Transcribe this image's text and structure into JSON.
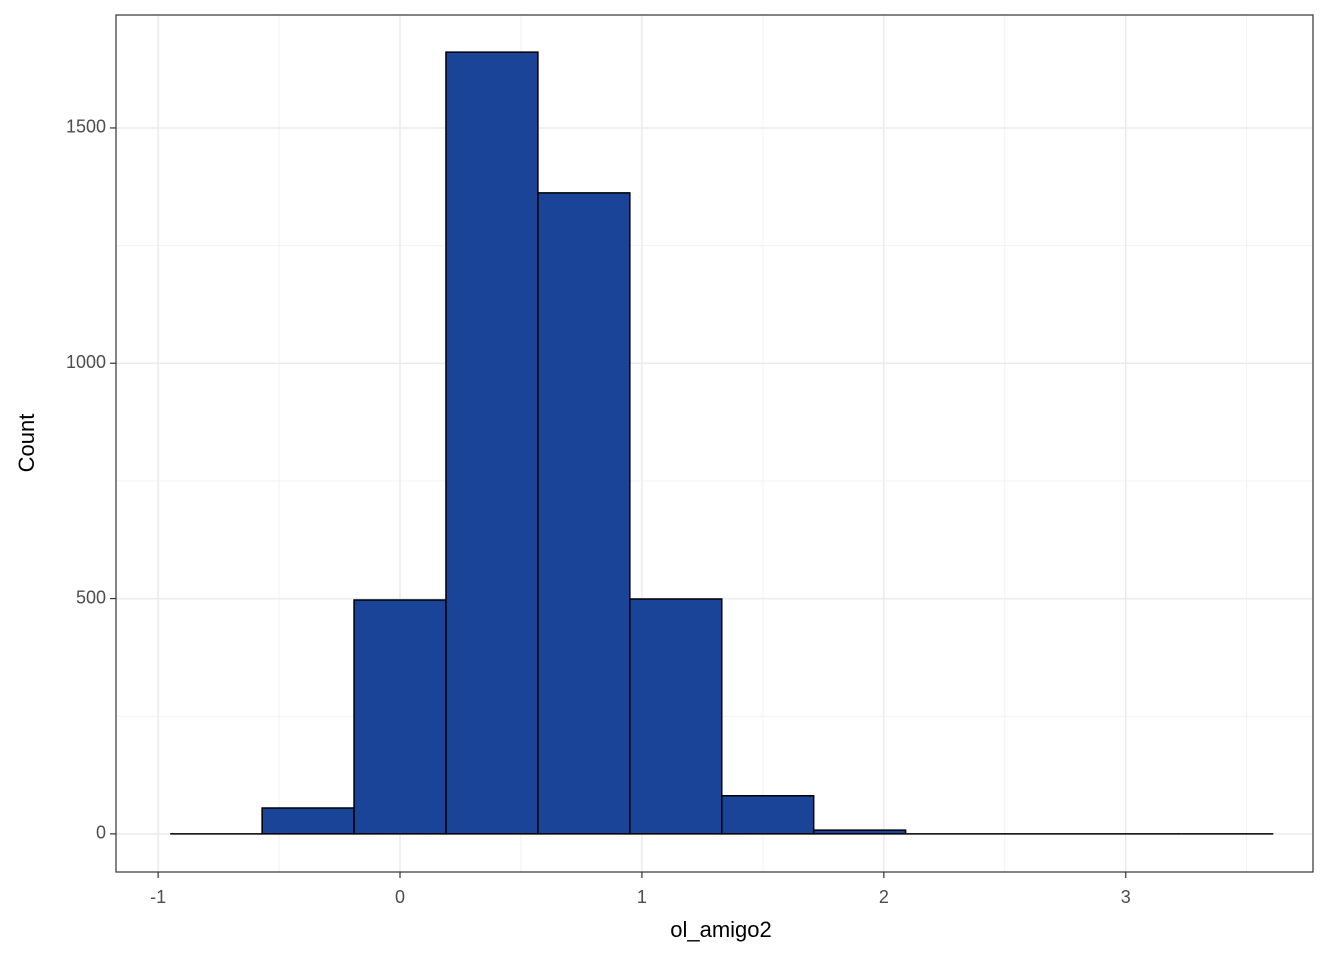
{
  "chart_data": {
    "type": "histogram",
    "x_label": "ol_amigo2",
    "y_label": "Count",
    "bins": [
      -0.95,
      -0.57,
      -0.19,
      0.19,
      0.57,
      0.95,
      1.33,
      1.71,
      2.09,
      2.47,
      2.85,
      3.23,
      3.61
    ],
    "values": [
      0,
      55,
      497,
      1661,
      1362,
      499,
      81,
      8,
      0,
      0,
      0,
      0
    ],
    "color": "#1a4498",
    "xlim": [
      -1.174,
      3.774
    ],
    "ylim": [
      -81,
      1740
    ],
    "xticks": [
      -1,
      0,
      1,
      2,
      3
    ],
    "yticks": [
      0,
      500,
      1000,
      1500
    ],
    "xminor": [
      -0.5,
      0.5,
      1.5,
      2.5,
      3.5
    ],
    "yminor": [
      250,
      750,
      1250
    ],
    "grid": true
  }
}
